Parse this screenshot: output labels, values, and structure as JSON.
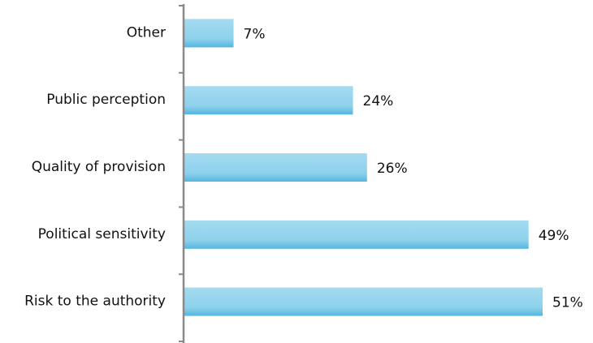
{
  "chart_data": {
    "type": "bar",
    "orientation": "horizontal",
    "categories": [
      "Other",
      "Public perception",
      "Quality of provision",
      "Political sensitivity",
      "Risk to the authority"
    ],
    "values": [
      7,
      24,
      26,
      49,
      51
    ],
    "value_labels": [
      "7%",
      "24%",
      "26%",
      "49%",
      "51%"
    ],
    "color": "#7ccbea"
  }
}
